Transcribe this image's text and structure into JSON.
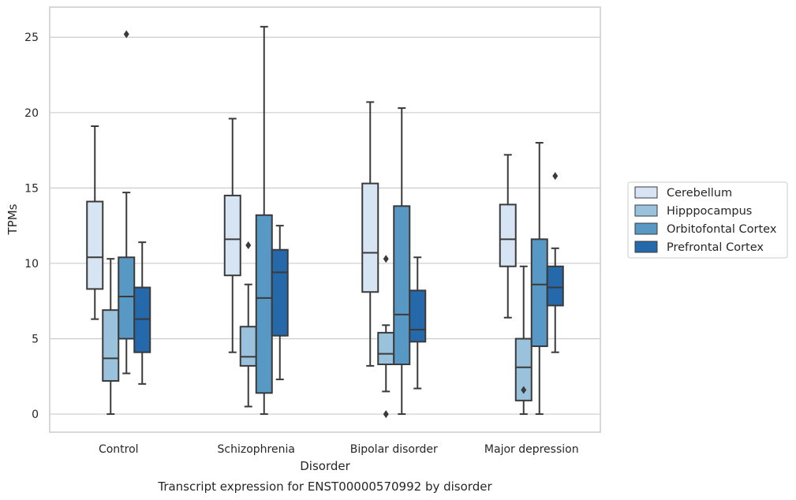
{
  "caption": "Transcript expression for ENST00000570992 by disorder",
  "chart_data": {
    "type": "box",
    "xlabel": "Disorder",
    "ylabel": "TPMs",
    "ylim": [
      -1.2,
      27.0
    ],
    "yticks": [
      0,
      5,
      10,
      15,
      20,
      25
    ],
    "grid": true,
    "legend_position": "right",
    "categories": [
      "Control",
      "Schizophrenia",
      "Bipolar disorder",
      "Major depression"
    ],
    "series": [
      {
        "name": "Cerebellum",
        "color": "#d6e4f3",
        "boxes": [
          {
            "whislo": 6.3,
            "q1": 8.3,
            "med": 10.4,
            "q3": 14.1,
            "whishi": 19.1,
            "fliers": []
          },
          {
            "whislo": 4.1,
            "q1": 9.2,
            "med": 11.6,
            "q3": 14.5,
            "whishi": 19.6,
            "fliers": []
          },
          {
            "whislo": 3.2,
            "q1": 8.1,
            "med": 10.7,
            "q3": 15.3,
            "whishi": 20.7,
            "fliers": []
          },
          {
            "whislo": 6.4,
            "q1": 9.8,
            "med": 11.6,
            "q3": 13.9,
            "whishi": 17.2,
            "fliers": []
          }
        ]
      },
      {
        "name": "Hipppocampus",
        "color": "#9bc2dc",
        "boxes": [
          {
            "whislo": 0.0,
            "q1": 2.2,
            "med": 3.7,
            "q3": 6.9,
            "whishi": 10.3,
            "fliers": []
          },
          {
            "whislo": 0.5,
            "q1": 3.2,
            "med": 3.8,
            "q3": 5.8,
            "whishi": 8.6,
            "fliers": [
              11.2
            ]
          },
          {
            "whislo": 1.5,
            "q1": 3.3,
            "med": 4.0,
            "q3": 5.4,
            "whishi": 5.9,
            "fliers": [
              10.3,
              0.0
            ]
          },
          {
            "whislo": 0.0,
            "q1": 0.9,
            "med": 3.1,
            "q3": 5.0,
            "whishi": 9.8,
            "fliers": [
              1.6
            ]
          }
        ]
      },
      {
        "name": "Orbitofontal Cortex",
        "color": "#5898c4",
        "boxes": [
          {
            "whislo": 2.7,
            "q1": 5.0,
            "med": 7.8,
            "q3": 10.4,
            "whishi": 14.7,
            "fliers": [
              25.2
            ]
          },
          {
            "whislo": 0.0,
            "q1": 1.4,
            "med": 7.7,
            "q3": 13.2,
            "whishi": 25.7,
            "fliers": []
          },
          {
            "whislo": 0.0,
            "q1": 3.3,
            "med": 6.6,
            "q3": 13.8,
            "whishi": 20.3,
            "fliers": []
          },
          {
            "whislo": 0.0,
            "q1": 4.5,
            "med": 8.6,
            "q3": 11.6,
            "whishi": 18.0,
            "fliers": []
          }
        ]
      },
      {
        "name": "Prefrontal Cortex",
        "color": "#2569aa",
        "boxes": [
          {
            "whislo": 2.0,
            "q1": 4.1,
            "med": 6.3,
            "q3": 8.4,
            "whishi": 11.4,
            "fliers": []
          },
          {
            "whislo": 2.3,
            "q1": 5.2,
            "med": 9.4,
            "q3": 10.9,
            "whishi": 12.5,
            "fliers": []
          },
          {
            "whislo": 1.7,
            "q1": 4.8,
            "med": 5.6,
            "q3": 8.2,
            "whishi": 10.4,
            "fliers": []
          },
          {
            "whislo": 4.1,
            "q1": 7.2,
            "med": 8.4,
            "q3": 9.8,
            "whishi": 11.0,
            "fliers": [
              15.8
            ]
          }
        ]
      }
    ]
  }
}
